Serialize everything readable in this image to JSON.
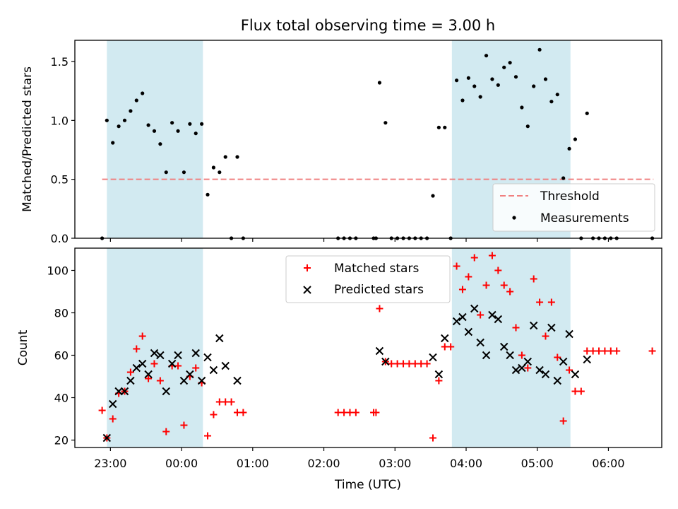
{
  "figure": {
    "title": "Flux total observing time = 3.00 h",
    "xlabel": "Time (UTC)"
  },
  "chart_data": [
    {
      "type": "scatter",
      "panel": "top",
      "ylabel": "Matched/Predicted stars",
      "xlim": [
        "22:30",
        "06:45"
      ],
      "ylim": [
        0,
        1.68
      ],
      "y_ticks": [
        "0.0",
        "0.5",
        "1.0",
        "1.5"
      ],
      "x_ticks": [
        "23:00",
        "00:00",
        "01:00",
        "02:00",
        "03:00",
        "04:00",
        "05:00",
        "06:00"
      ],
      "grid": false,
      "legend_position": "lower-right",
      "shaded_intervals": [
        [
          "22:57",
          "00:18"
        ],
        [
          "03:48",
          "05:28"
        ]
      ],
      "shade_color": "#add8e6",
      "threshold": {
        "name": "Threshold",
        "y": 0.5,
        "x_start": "22:53",
        "x_end": "06:38",
        "color": "#f08080"
      },
      "series": [
        {
          "name": "Measurements",
          "color": "#000000",
          "points": [
            [
              "22:53",
              0.0
            ],
            [
              "22:57",
              1.0
            ],
            [
              "23:02",
              0.81
            ],
            [
              "23:07",
              0.95
            ],
            [
              "23:12",
              1.0
            ],
            [
              "23:17",
              1.08
            ],
            [
              "23:22",
              1.17
            ],
            [
              "23:27",
              1.23
            ],
            [
              "23:32",
              0.96
            ],
            [
              "23:37",
              0.91
            ],
            [
              "23:42",
              0.8
            ],
            [
              "23:47",
              0.56
            ],
            [
              "23:52",
              0.98
            ],
            [
              "23:57",
              0.91
            ],
            [
              "00:02",
              0.56
            ],
            [
              "00:07",
              0.97
            ],
            [
              "00:12",
              0.89
            ],
            [
              "00:17",
              0.97
            ],
            [
              "00:22",
              0.37
            ],
            [
              "00:27",
              0.6
            ],
            [
              "00:32",
              0.56
            ],
            [
              "00:37",
              0.69
            ],
            [
              "00:42",
              0.0
            ],
            [
              "00:47",
              0.69
            ],
            [
              "00:52",
              0.0
            ],
            [
              "02:12",
              0.0
            ],
            [
              "02:17",
              0.0
            ],
            [
              "02:22",
              0.0
            ],
            [
              "02:27",
              0.0
            ],
            [
              "02:42",
              0.0
            ],
            [
              "02:44",
              0.0
            ],
            [
              "02:47",
              1.32
            ],
            [
              "02:52",
              0.98
            ],
            [
              "02:57",
              0.0
            ],
            [
              "03:02",
              0.0
            ],
            [
              "03:07",
              0.0
            ],
            [
              "03:12",
              0.0
            ],
            [
              "03:17",
              0.0
            ],
            [
              "03:22",
              0.0
            ],
            [
              "03:27",
              0.0
            ],
            [
              "03:32",
              0.36
            ],
            [
              "03:37",
              0.94
            ],
            [
              "03:42",
              0.94
            ],
            [
              "03:47",
              0.0
            ],
            [
              "03:52",
              1.34
            ],
            [
              "03:57",
              1.17
            ],
            [
              "04:02",
              1.36
            ],
            [
              "04:07",
              1.29
            ],
            [
              "04:12",
              1.2
            ],
            [
              "04:17",
              1.55
            ],
            [
              "04:22",
              1.35
            ],
            [
              "04:27",
              1.3
            ],
            [
              "04:32",
              1.45
            ],
            [
              "04:37",
              1.49
            ],
            [
              "04:42",
              1.37
            ],
            [
              "04:47",
              1.11
            ],
            [
              "04:52",
              0.95
            ],
            [
              "04:57",
              1.29
            ],
            [
              "05:02",
              1.6
            ],
            [
              "05:07",
              1.35
            ],
            [
              "05:12",
              1.16
            ],
            [
              "05:17",
              1.22
            ],
            [
              "05:22",
              0.51
            ],
            [
              "05:27",
              0.76
            ],
            [
              "05:32",
              0.84
            ],
            [
              "05:37",
              0.0
            ],
            [
              "05:42",
              1.06
            ],
            [
              "05:47",
              0.0
            ],
            [
              "05:52",
              0.0
            ],
            [
              "05:57",
              0.0
            ],
            [
              "06:02",
              0.0
            ],
            [
              "06:07",
              0.0
            ],
            [
              "06:37",
              0.0
            ]
          ]
        }
      ]
    },
    {
      "type": "scatter",
      "panel": "bottom",
      "ylabel": "Count",
      "xlim": [
        "22:30",
        "06:45"
      ],
      "ylim": [
        16.5,
        110.5
      ],
      "y_ticks": [
        "20",
        "40",
        "60",
        "80",
        "100"
      ],
      "x_ticks": [
        "23:00",
        "00:00",
        "01:00",
        "02:00",
        "03:00",
        "04:00",
        "05:00",
        "06:00"
      ],
      "grid": false,
      "legend_position": "upper-center",
      "shaded_intervals": [
        [
          "22:57",
          "00:18"
        ],
        [
          "03:48",
          "05:28"
        ]
      ],
      "shade_color": "#add8e6",
      "series": [
        {
          "name": "Matched stars",
          "marker": "plus",
          "color": "#ff0000",
          "points": [
            [
              "22:53",
              34
            ],
            [
              "22:57",
              21
            ],
            [
              "23:02",
              30
            ],
            [
              "23:07",
              42
            ],
            [
              "23:12",
              43
            ],
            [
              "23:17",
              52
            ],
            [
              "23:22",
              63
            ],
            [
              "23:27",
              69
            ],
            [
              "23:32",
              49
            ],
            [
              "23:37",
              56
            ],
            [
              "23:42",
              48
            ],
            [
              "23:47",
              24
            ],
            [
              "23:52",
              55
            ],
            [
              "23:57",
              55
            ],
            [
              "00:02",
              27
            ],
            [
              "00:07",
              50
            ],
            [
              "00:12",
              54
            ],
            [
              "00:17",
              47
            ],
            [
              "00:22",
              22
            ],
            [
              "00:27",
              32
            ],
            [
              "00:32",
              38
            ],
            [
              "00:37",
              38
            ],
            [
              "00:42",
              38
            ],
            [
              "00:47",
              33
            ],
            [
              "00:52",
              33
            ],
            [
              "02:12",
              33
            ],
            [
              "02:17",
              33
            ],
            [
              "02:22",
              33
            ],
            [
              "02:27",
              33
            ],
            [
              "02:42",
              33
            ],
            [
              "02:44",
              33
            ],
            [
              "02:47",
              82
            ],
            [
              "02:52",
              57
            ],
            [
              "02:57",
              56
            ],
            [
              "03:02",
              56
            ],
            [
              "03:07",
              56
            ],
            [
              "03:12",
              56
            ],
            [
              "03:17",
              56
            ],
            [
              "03:22",
              56
            ],
            [
              "03:27",
              56
            ],
            [
              "03:32",
              21
            ],
            [
              "03:37",
              48
            ],
            [
              "03:42",
              64
            ],
            [
              "03:47",
              64
            ],
            [
              "03:52",
              102
            ],
            [
              "03:57",
              91
            ],
            [
              "04:02",
              97
            ],
            [
              "04:07",
              106
            ],
            [
              "04:12",
              79
            ],
            [
              "04:17",
              93
            ],
            [
              "04:22",
              107
            ],
            [
              "04:27",
              100
            ],
            [
              "04:32",
              93
            ],
            [
              "04:37",
              90
            ],
            [
              "04:42",
              73
            ],
            [
              "04:47",
              60
            ],
            [
              "04:52",
              54
            ],
            [
              "04:57",
              96
            ],
            [
              "05:02",
              85
            ],
            [
              "05:07",
              69
            ],
            [
              "05:12",
              85
            ],
            [
              "05:17",
              59
            ],
            [
              "05:22",
              29
            ],
            [
              "05:27",
              53
            ],
            [
              "05:32",
              43
            ],
            [
              "05:37",
              43
            ],
            [
              "05:42",
              62
            ],
            [
              "05:47",
              62
            ],
            [
              "05:52",
              62
            ],
            [
              "05:57",
              62
            ],
            [
              "06:02",
              62
            ],
            [
              "06:07",
              62
            ],
            [
              "06:37",
              62
            ]
          ]
        },
        {
          "name": "Predicted stars",
          "marker": "x",
          "color": "#000000",
          "points": [
            [
              "22:57",
              21
            ],
            [
              "23:02",
              37
            ],
            [
              "23:07",
              43
            ],
            [
              "23:12",
              43
            ],
            [
              "23:17",
              48
            ],
            [
              "23:22",
              54
            ],
            [
              "23:27",
              56
            ],
            [
              "23:32",
              51
            ],
            [
              "23:37",
              61
            ],
            [
              "23:42",
              60
            ],
            [
              "23:47",
              43
            ],
            [
              "23:52",
              56
            ],
            [
              "23:57",
              60
            ],
            [
              "00:02",
              48
            ],
            [
              "00:07",
              51
            ],
            [
              "00:12",
              61
            ],
            [
              "00:17",
              48
            ],
            [
              "00:22",
              59
            ],
            [
              "00:27",
              53
            ],
            [
              "00:32",
              68
            ],
            [
              "00:37",
              55
            ],
            [
              "00:47",
              48
            ],
            [
              "02:47",
              62
            ],
            [
              "02:52",
              57
            ],
            [
              "03:32",
              59
            ],
            [
              "03:37",
              51
            ],
            [
              "03:42",
              68
            ],
            [
              "03:52",
              76
            ],
            [
              "03:57",
              78
            ],
            [
              "04:02",
              71
            ],
            [
              "04:07",
              82
            ],
            [
              "04:12",
              66
            ],
            [
              "04:17",
              60
            ],
            [
              "04:22",
              79
            ],
            [
              "04:27",
              77
            ],
            [
              "04:32",
              64
            ],
            [
              "04:37",
              60
            ],
            [
              "04:42",
              53
            ],
            [
              "04:47",
              54
            ],
            [
              "04:52",
              57
            ],
            [
              "04:57",
              74
            ],
            [
              "05:02",
              53
            ],
            [
              "05:07",
              51
            ],
            [
              "05:12",
              73
            ],
            [
              "05:17",
              48
            ],
            [
              "05:22",
              57
            ],
            [
              "05:27",
              70
            ],
            [
              "05:32",
              51
            ],
            [
              "05:42",
              58
            ]
          ]
        }
      ]
    }
  ]
}
